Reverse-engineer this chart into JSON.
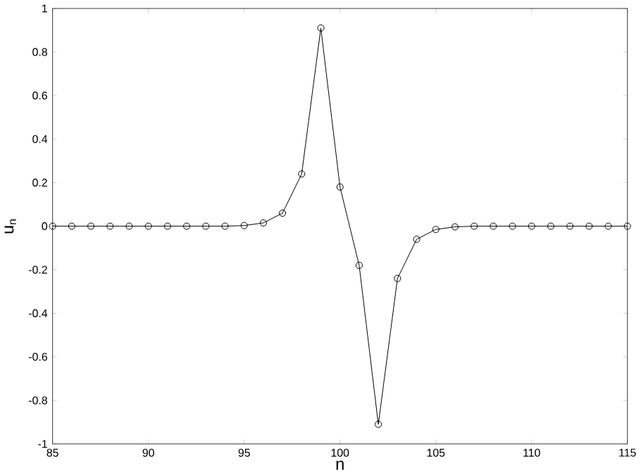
{
  "chart_data": {
    "type": "line",
    "xlabel": "n",
    "ylabel": "u$_{n}$",
    "x": [
      85,
      86,
      87,
      88,
      89,
      90,
      91,
      92,
      93,
      94,
      95,
      96,
      97,
      98,
      99,
      100,
      101,
      102,
      103,
      104,
      105,
      106,
      107,
      108,
      109,
      110,
      111,
      112,
      113,
      114,
      115
    ],
    "series": [
      {
        "color": "#000000",
        "values": [
          0,
          0,
          0,
          0,
          0,
          0,
          0,
          0,
          0,
          0,
          0.003,
          0.015,
          0.06,
          0.24,
          0.91,
          0.18,
          -0.18,
          -0.91,
          -0.24,
          -0.06,
          -0.015,
          -0.003,
          0,
          0,
          0,
          0,
          0,
          0,
          0,
          0,
          0
        ]
      }
    ],
    "xlim": [
      85,
      115
    ],
    "ylim": [
      -1,
      1
    ],
    "xticks": [
      85,
      90,
      95,
      100,
      105,
      110,
      115
    ],
    "yticks": [
      -1,
      -0.8,
      -0.6,
      -0.4,
      -0.2,
      0,
      0.2,
      0.4,
      0.6,
      0.8,
      1
    ],
    "marker": "circle",
    "line_style": "solid"
  }
}
